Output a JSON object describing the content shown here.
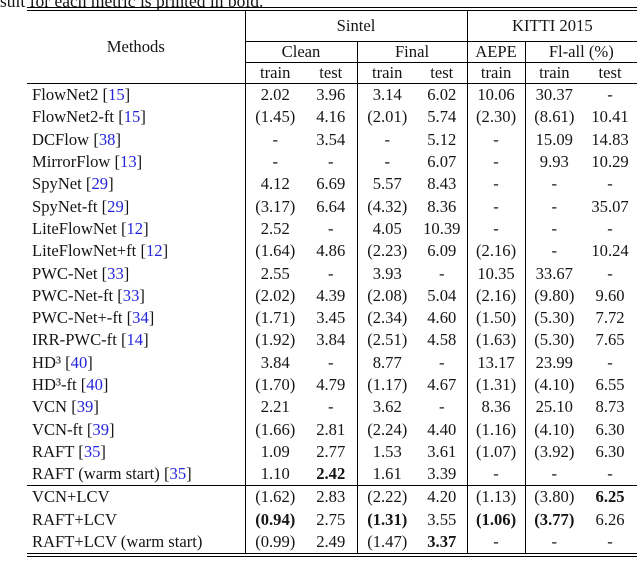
{
  "caption": "sult for each metric is printed in bold.",
  "colors": {
    "background": "#ffffff",
    "text": "#151515",
    "citation": "#2424dd",
    "rule": "#000000"
  },
  "table": {
    "header": {
      "methods": "Methods",
      "groups": [
        {
          "label": "Sintel",
          "span": 4
        },
        {
          "label": "KITTI 2015",
          "span": 3
        }
      ],
      "subgroups": [
        {
          "label": "Clean",
          "span": 2
        },
        {
          "label": "Final",
          "span": 2
        },
        {
          "label": "AEPE",
          "span": 1
        },
        {
          "label": "Fl-all (%)",
          "span": 2
        }
      ],
      "columns": [
        "train",
        "test",
        "train",
        "test",
        "train",
        "train",
        "test"
      ]
    },
    "rows": [
      {
        "method": "FlowNet2",
        "cite": "15",
        "values": [
          "2.02",
          "3.96",
          "3.14",
          "6.02",
          "10.06",
          "30.37",
          "-"
        ],
        "bold": []
      },
      {
        "method": "FlowNet2-ft",
        "cite": "15",
        "values": [
          "(1.45)",
          "4.16",
          "(2.01)",
          "5.74",
          "(2.30)",
          "(8.61)",
          "10.41"
        ],
        "bold": []
      },
      {
        "method": "DCFlow",
        "cite": "38",
        "values": [
          "-",
          "3.54",
          "-",
          "5.12",
          "-",
          "15.09",
          "14.83"
        ],
        "bold": []
      },
      {
        "method": "MirrorFlow",
        "cite": "13",
        "values": [
          "-",
          "-",
          "-",
          "6.07",
          "-",
          "9.93",
          "10.29"
        ],
        "bold": []
      },
      {
        "method": "SpyNet",
        "cite": "29",
        "values": [
          "4.12",
          "6.69",
          "5.57",
          "8.43",
          "-",
          "-",
          "-"
        ],
        "bold": []
      },
      {
        "method": "SpyNet-ft",
        "cite": "29",
        "values": [
          "(3.17)",
          "6.64",
          "(4.32)",
          "8.36",
          "-",
          "-",
          "35.07"
        ],
        "bold": []
      },
      {
        "method": "LiteFlowNet",
        "cite": "12",
        "values": [
          "2.52",
          "-",
          "4.05",
          "10.39",
          "-",
          "-",
          "-"
        ],
        "bold": []
      },
      {
        "method": "LiteFlowNet+ft",
        "cite": "12",
        "values": [
          "(1.64)",
          "4.86",
          "(2.23)",
          "6.09",
          "(2.16)",
          "-",
          "10.24"
        ],
        "bold": []
      },
      {
        "method": "PWC-Net",
        "cite": "33",
        "values": [
          "2.55",
          "-",
          "3.93",
          "-",
          "10.35",
          "33.67",
          "-"
        ],
        "bold": []
      },
      {
        "method": "PWC-Net-ft",
        "cite": "33",
        "values": [
          "(2.02)",
          "4.39",
          "(2.08)",
          "5.04",
          "(2.16)",
          "(9.80)",
          "9.60"
        ],
        "bold": []
      },
      {
        "method": "PWC-Net+-ft",
        "cite": "34",
        "values": [
          "(1.71)",
          "3.45",
          "(2.34)",
          "4.60",
          "(1.50)",
          "(5.30)",
          "7.72"
        ],
        "bold": []
      },
      {
        "method": "IRR-PWC-ft",
        "cite": "14",
        "values": [
          "(1.92)",
          "3.84",
          "(2.51)",
          "4.58",
          "(1.63)",
          "(5.30)",
          "7.65"
        ],
        "bold": []
      },
      {
        "method": "HD³",
        "cite": "40",
        "values": [
          "3.84",
          "-",
          "8.77",
          "-",
          "13.17",
          "23.99",
          "-"
        ],
        "bold": []
      },
      {
        "method": "HD³-ft",
        "cite": "40",
        "values": [
          "(1.70)",
          "4.79",
          "(1.17)",
          "4.67",
          "(1.31)",
          "(4.10)",
          "6.55"
        ],
        "bold": []
      },
      {
        "method": "VCN",
        "cite": "39",
        "values": [
          "2.21",
          "-",
          "3.62",
          "-",
          "8.36",
          "25.10",
          "8.73"
        ],
        "bold": []
      },
      {
        "method": "VCN-ft",
        "cite": "39",
        "values": [
          "(1.66)",
          "2.81",
          "(2.24)",
          "4.40",
          "(1.16)",
          "(4.10)",
          "6.30"
        ],
        "bold": []
      },
      {
        "method": "RAFT",
        "cite": "35",
        "values": [
          "1.09",
          "2.77",
          "1.53",
          "3.61",
          "(1.07)",
          "(3.92)",
          "6.30"
        ],
        "bold": []
      },
      {
        "method": "RAFT (warm start)",
        "cite": "35",
        "values": [
          "1.10",
          "2.42",
          "1.61",
          "3.39",
          "-",
          "-",
          "-"
        ],
        "bold": [
          1
        ]
      },
      {
        "method": "VCN+LCV",
        "cite": null,
        "values": [
          "(1.62)",
          "2.83",
          "(2.22)",
          "4.20",
          "(1.13)",
          "(3.80)",
          "6.25"
        ],
        "bold": [
          6
        ],
        "group_start": true
      },
      {
        "method": "RAFT+LCV",
        "cite": null,
        "values": [
          "(0.94)",
          "2.75",
          "(1.31)",
          "3.55",
          "(1.06)",
          "(3.77)",
          "6.26"
        ],
        "bold": [
          0,
          2,
          4,
          5
        ]
      },
      {
        "method": "RAFT+LCV (warm start)",
        "cite": null,
        "values": [
          "(0.99)",
          "2.49",
          "(1.47)",
          "3.37",
          "-",
          "-",
          "-"
        ],
        "bold": [
          3
        ]
      }
    ]
  }
}
